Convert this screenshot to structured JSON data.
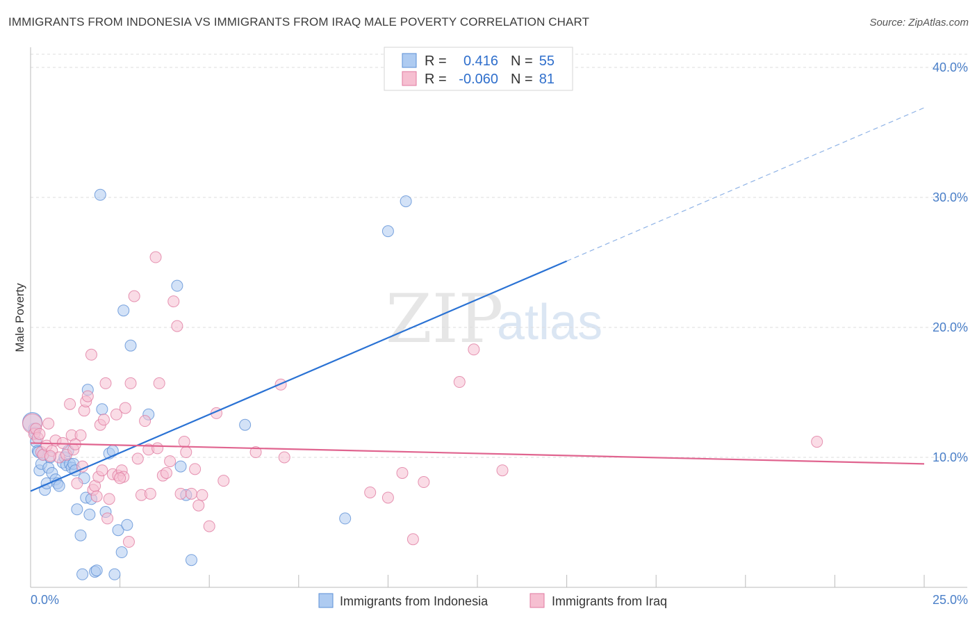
{
  "header": {
    "title": "IMMIGRANTS FROM INDONESIA VS IMMIGRANTS FROM IRAQ MALE POVERTY CORRELATION CHART",
    "source": "Source: ZipAtlas.com"
  },
  "watermark": {
    "zip": "ZIP",
    "atlas": "atlas"
  },
  "legend": {
    "rows": [
      {
        "r_label": "R =",
        "r_value": "0.416",
        "n_label": "N =",
        "n_value": "55",
        "color": "#5b8fd6"
      },
      {
        "r_label": "R =",
        "r_value": "-0.060",
        "n_label": "N =",
        "n_value": "81",
        "color": "#e07aa0"
      }
    ]
  },
  "chart_data": {
    "type": "scatter",
    "title": "IMMIGRANTS FROM INDONESIA VS IMMIGRANTS FROM IRAQ MALE POVERTY CORRELATION CHART",
    "xlabel": "",
    "ylabel": "Male Poverty",
    "xlim": [
      0,
      25
    ],
    "ylim": [
      0,
      40
    ],
    "x_tick_labels": [
      "0.0%",
      "25.0%"
    ],
    "y_ticks": [
      10,
      20,
      30,
      40
    ],
    "y_tick_labels": [
      "10.0%",
      "20.0%",
      "30.0%",
      "40.0%"
    ],
    "legend_position": "top-center",
    "series": [
      {
        "name": "Immigrants from Indonesia",
        "color": "#5b8fd6",
        "fill": "#aecbf1",
        "points": [
          [
            0.1,
            12.2
          ],
          [
            0.15,
            11.2
          ],
          [
            0.2,
            10.5
          ],
          [
            0.25,
            9.0
          ],
          [
            0.3,
            9.5
          ],
          [
            0.35,
            10.2
          ],
          [
            0.4,
            7.5
          ],
          [
            0.45,
            8.0
          ],
          [
            0.5,
            9.2
          ],
          [
            0.55,
            10.0
          ],
          [
            0.6,
            8.8
          ],
          [
            0.7,
            8.3
          ],
          [
            0.75,
            8.0
          ],
          [
            0.8,
            7.8
          ],
          [
            0.9,
            9.6
          ],
          [
            0.95,
            10.0
          ],
          [
            1.0,
            9.4
          ],
          [
            1.05,
            10.5
          ],
          [
            1.1,
            9.5
          ],
          [
            1.15,
            9.2
          ],
          [
            1.2,
            9.5
          ],
          [
            1.25,
            9.0
          ],
          [
            1.3,
            6.0
          ],
          [
            1.4,
            4.0
          ],
          [
            1.45,
            1.0
          ],
          [
            1.5,
            8.4
          ],
          [
            1.55,
            6.9
          ],
          [
            1.6,
            15.2
          ],
          [
            1.65,
            5.6
          ],
          [
            1.7,
            6.8
          ],
          [
            1.8,
            1.2
          ],
          [
            1.85,
            1.3
          ],
          [
            1.95,
            30.2
          ],
          [
            2.0,
            13.7
          ],
          [
            2.1,
            5.8
          ],
          [
            2.2,
            10.3
          ],
          [
            2.3,
            10.5
          ],
          [
            2.35,
            1.0
          ],
          [
            2.45,
            4.4
          ],
          [
            2.55,
            2.7
          ],
          [
            2.6,
            21.3
          ],
          [
            2.7,
            4.8
          ],
          [
            2.8,
            18.6
          ],
          [
            3.3,
            13.3
          ],
          [
            4.1,
            23.2
          ],
          [
            4.2,
            9.3
          ],
          [
            4.35,
            7.1
          ],
          [
            4.5,
            2.1
          ],
          [
            6.0,
            12.5
          ],
          [
            8.8,
            5.3
          ],
          [
            10.0,
            27.4
          ],
          [
            10.5,
            29.7
          ],
          [
            0.05,
            12.7
          ],
          [
            0.12,
            11.9
          ],
          [
            0.22,
            10.4
          ]
        ],
        "trend_line": {
          "x": [
            0,
            15
          ],
          "y": [
            7.4,
            25.1
          ],
          "dashed_extension": {
            "x": [
              15,
              25
            ],
            "y": [
              25.1,
              36.9
            ]
          }
        }
      },
      {
        "name": "Immigrants from Iraq",
        "color": "#e07aa0",
        "fill": "#f6bfd1",
        "points": [
          [
            0.05,
            12.6
          ],
          [
            0.1,
            11.8
          ],
          [
            0.15,
            12.2
          ],
          [
            0.2,
            11.5
          ],
          [
            0.3,
            10.4
          ],
          [
            0.35,
            10.2
          ],
          [
            0.45,
            10.9
          ],
          [
            0.5,
            12.6
          ],
          [
            0.6,
            10.5
          ],
          [
            0.7,
            11.3
          ],
          [
            0.8,
            10.0
          ],
          [
            0.9,
            11.1
          ],
          [
            1.0,
            10.2
          ],
          [
            1.1,
            14.1
          ],
          [
            1.15,
            11.7
          ],
          [
            1.2,
            10.6
          ],
          [
            1.3,
            8.0
          ],
          [
            1.4,
            11.7
          ],
          [
            1.5,
            13.6
          ],
          [
            1.55,
            14.3
          ],
          [
            1.6,
            14.7
          ],
          [
            1.7,
            17.9
          ],
          [
            1.75,
            7.5
          ],
          [
            1.8,
            7.8
          ],
          [
            1.9,
            8.5
          ],
          [
            1.95,
            12.5
          ],
          [
            2.0,
            9.0
          ],
          [
            2.1,
            15.7
          ],
          [
            2.15,
            5.3
          ],
          [
            2.2,
            6.8
          ],
          [
            2.3,
            8.7
          ],
          [
            2.4,
            13.3
          ],
          [
            2.45,
            8.6
          ],
          [
            2.55,
            9.0
          ],
          [
            2.6,
            8.5
          ],
          [
            2.65,
            13.8
          ],
          [
            2.75,
            3.5
          ],
          [
            2.8,
            15.7
          ],
          [
            2.9,
            22.4
          ],
          [
            3.0,
            9.9
          ],
          [
            3.1,
            7.1
          ],
          [
            3.2,
            12.8
          ],
          [
            3.3,
            10.6
          ],
          [
            3.35,
            7.2
          ],
          [
            3.5,
            25.4
          ],
          [
            3.55,
            10.7
          ],
          [
            3.6,
            15.7
          ],
          [
            3.7,
            8.6
          ],
          [
            3.8,
            8.8
          ],
          [
            3.9,
            9.7
          ],
          [
            4.0,
            22.0
          ],
          [
            4.1,
            20.1
          ],
          [
            4.2,
            7.2
          ],
          [
            4.3,
            11.2
          ],
          [
            4.35,
            10.4
          ],
          [
            4.5,
            7.2
          ],
          [
            4.6,
            9.1
          ],
          [
            4.7,
            6.3
          ],
          [
            4.8,
            7.1
          ],
          [
            5.0,
            4.7
          ],
          [
            5.2,
            13.4
          ],
          [
            5.4,
            8.2
          ],
          [
            6.3,
            10.4
          ],
          [
            7.0,
            15.6
          ],
          [
            7.1,
            10.0
          ],
          [
            9.5,
            7.3
          ],
          [
            10.0,
            6.9
          ],
          [
            10.4,
            8.8
          ],
          [
            10.7,
            3.7
          ],
          [
            11.0,
            8.1
          ],
          [
            12.0,
            15.8
          ],
          [
            12.4,
            18.3
          ],
          [
            13.2,
            9.0
          ],
          [
            22.0,
            11.2
          ],
          [
            1.25,
            11.0
          ],
          [
            0.25,
            11.8
          ],
          [
            0.55,
            10.1
          ],
          [
            1.85,
            7.0
          ],
          [
            2.05,
            12.9
          ],
          [
            2.5,
            8.4
          ],
          [
            1.45,
            9.3
          ]
        ],
        "trend_line": {
          "x": [
            0,
            25
          ],
          "y": [
            11.1,
            9.5
          ]
        }
      }
    ]
  },
  "bottom_legend": [
    {
      "label": "Immigrants from Indonesia",
      "color": "#5b8fd6"
    },
    {
      "label": "Immigrants from Iraq",
      "color": "#e07aa0"
    }
  ]
}
